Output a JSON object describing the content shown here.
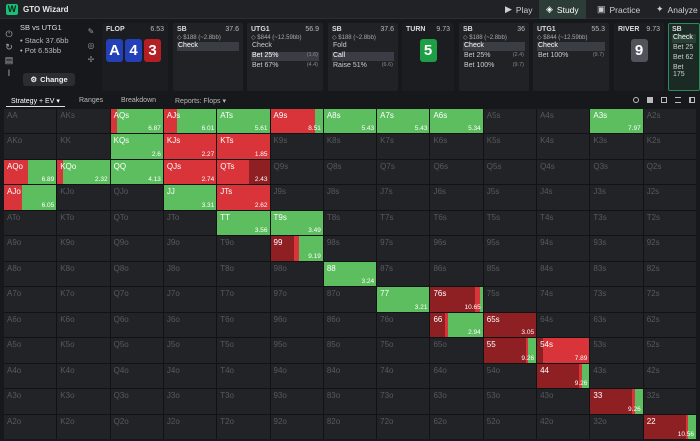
{
  "app": {
    "title": "GTO Wizard"
  },
  "colors": {
    "green": "#5cbe5e",
    "red": "#d9343a",
    "darkred": "#8e1f23",
    "brand": "#16c079"
  },
  "nav": [
    {
      "label": "Play",
      "icon": "play-icon"
    },
    {
      "label": "Study",
      "icon": "study-icon"
    },
    {
      "label": "Practice",
      "icon": "gamepad-icon"
    },
    {
      "label": "Analyze",
      "icon": "bulb-icon"
    }
  ],
  "situation": {
    "title": "SB vs UTG1",
    "stack": "Stack 37.6bb",
    "pot": "Pot 6.53bb",
    "change": "Change"
  },
  "panels": {
    "flop": {
      "street": "FLOP",
      "value": "6.53",
      "cards": [
        "A",
        "4",
        "3"
      ]
    },
    "sb1": {
      "pos": "SB",
      "value": "37.6",
      "sub": "◇ $188 (~2.8bb)",
      "actions": [
        {
          "label": "Check",
          "r": ""
        }
      ]
    },
    "utg1a": {
      "pos": "UTG1",
      "value": "56.9",
      "sub": "◇ $844 (~12.59bb)",
      "actions": [
        {
          "label": "Check",
          "r": ""
        },
        {
          "label": "Bet 25%",
          "r": "(1.6)"
        },
        {
          "label": "Bet 67%",
          "r": "(4.4)"
        }
      ]
    },
    "sb2": {
      "pos": "SB",
      "value": "37.6",
      "sub": "◇ $188 (~2.8bb)",
      "actions": [
        {
          "label": "Fold",
          "r": ""
        },
        {
          "label": "Call",
          "r": ""
        },
        {
          "label": "Raise 51%",
          "r": "(6.6)"
        }
      ]
    },
    "turn": {
      "street": "TURN",
      "value": "9.73",
      "card": "5"
    },
    "sb3": {
      "pos": "SB",
      "value": "36",
      "sub": "◇ $188 (~2.8bb)",
      "actions": [
        {
          "label": "Check",
          "r": ""
        },
        {
          "label": "Bet 25%",
          "r": "(2.4)"
        },
        {
          "label": "Bet 100%",
          "r": "(9.7)"
        }
      ]
    },
    "utg1b": {
      "pos": "UTG1",
      "value": "55.3",
      "sub": "◇ $844 (~12.59bb)",
      "actions": [
        {
          "label": "Check",
          "r": ""
        },
        {
          "label": "Bet 100%",
          "r": "(9.7)"
        }
      ]
    },
    "river": {
      "street": "RIVER",
      "value": "9.73",
      "card": "9"
    },
    "sb4": {
      "pos": "SB",
      "actions": [
        {
          "label": "Check"
        },
        {
          "label": "Bet 25"
        },
        {
          "label": "Bet 62"
        },
        {
          "label": "Bet 175"
        }
      ]
    }
  },
  "toolbar": {
    "strategy": "Strategy + EV",
    "ranges": "Ranges",
    "breakdown": "Breakdown",
    "reports": "Reports: Flops"
  },
  "grid": {
    "hands": [
      [
        "AA",
        "AKs",
        "AQs",
        "AJs",
        "ATs",
        "A9s",
        "A8s",
        "A7s",
        "A6s",
        "A5s",
        "A4s",
        "A3s",
        "A2s"
      ],
      [
        "AKo",
        "KK",
        "KQs",
        "KJs",
        "KTs",
        "K9s",
        "K8s",
        "K7s",
        "K6s",
        "K5s",
        "K4s",
        "K3s",
        "K2s"
      ],
      [
        "AQo",
        "KQo",
        "QQ",
        "QJs",
        "QTs",
        "Q9s",
        "Q8s",
        "Q7s",
        "Q6s",
        "Q5s",
        "Q4s",
        "Q3s",
        "Q2s"
      ],
      [
        "AJo",
        "KJo",
        "QJo",
        "JJ",
        "JTs",
        "J9s",
        "J8s",
        "J7s",
        "J6s",
        "J5s",
        "J4s",
        "J3s",
        "J2s"
      ],
      [
        "ATo",
        "KTo",
        "QTo",
        "JTo",
        "TT",
        "T9s",
        "T8s",
        "T7s",
        "T6s",
        "T5s",
        "T4s",
        "T3s",
        "T2s"
      ],
      [
        "A9o",
        "K9o",
        "Q9o",
        "J9o",
        "T9o",
        "99",
        "98s",
        "97s",
        "96s",
        "95s",
        "94s",
        "93s",
        "92s"
      ],
      [
        "A8o",
        "K8o",
        "Q8o",
        "J8o",
        "T8o",
        "98o",
        "88",
        "87s",
        "86s",
        "85s",
        "84s",
        "83s",
        "82s"
      ],
      [
        "A7o",
        "K7o",
        "Q7o",
        "J7o",
        "T7o",
        "97o",
        "87o",
        "77",
        "76s",
        "75s",
        "74s",
        "73s",
        "72s"
      ],
      [
        "A6o",
        "K6o",
        "Q6o",
        "J6o",
        "T6o",
        "96o",
        "86o",
        "76o",
        "66",
        "65s",
        "64s",
        "63s",
        "62s"
      ],
      [
        "A5o",
        "K5o",
        "Q5o",
        "J5o",
        "T5o",
        "95o",
        "85o",
        "75o",
        "65o",
        "55",
        "54s",
        "53s",
        "52s"
      ],
      [
        "A4o",
        "K4o",
        "Q4o",
        "J4o",
        "T4o",
        "94o",
        "84o",
        "74o",
        "64o",
        "54o",
        "44",
        "43s",
        "42s"
      ],
      [
        "A3o",
        "K3o",
        "Q3o",
        "J3o",
        "T3o",
        "93o",
        "83o",
        "73o",
        "63o",
        "53o",
        "43o",
        "33",
        "32s"
      ],
      [
        "A2o",
        "K2o",
        "Q2o",
        "J2o",
        "T2o",
        "92o",
        "82o",
        "72o",
        "62o",
        "52o",
        "42o",
        "32o",
        "22"
      ]
    ],
    "strategies": {
      "AQs": {
        "ev": "6.87",
        "s": [
          [
            "red",
            0.12
          ],
          [
            "green",
            0.88
          ]
        ]
      },
      "AJs": {
        "ev": "6.01",
        "s": [
          [
            "red",
            0.25
          ],
          [
            "green",
            0.75
          ]
        ]
      },
      "ATs": {
        "ev": "5.61",
        "s": [
          [
            "green",
            1
          ]
        ]
      },
      "A9s": {
        "ev": "8.51",
        "s": [
          [
            "red",
            0.85
          ],
          [
            "green",
            0.15
          ]
        ]
      },
      "A8s": {
        "ev": "5.43",
        "s": [
          [
            "green",
            1
          ]
        ]
      },
      "A7s": {
        "ev": "5.43",
        "s": [
          [
            "green",
            1
          ]
        ]
      },
      "A6s": {
        "ev": "5.34",
        "s": [
          [
            "green",
            1
          ]
        ]
      },
      "A3s": {
        "ev": "7.97",
        "s": [
          [
            "green",
            1
          ]
        ]
      },
      "KQs": {
        "ev": "2.6",
        "s": [
          [
            "green",
            1
          ]
        ]
      },
      "KJs": {
        "ev": "2.27",
        "s": [
          [
            "red",
            1
          ]
        ]
      },
      "KTs": {
        "ev": "1.85",
        "s": [
          [
            "red",
            1
          ]
        ]
      },
      "AQo": {
        "ev": "6.89",
        "s": [
          [
            "red",
            0.45
          ],
          [
            "green",
            0.55
          ]
        ]
      },
      "KQo": {
        "ev": "2.32",
        "s": [
          [
            "red",
            0.1
          ],
          [
            "green",
            0.9
          ]
        ]
      },
      "QQ": {
        "ev": "4.13",
        "s": [
          [
            "green",
            1
          ]
        ]
      },
      "QJs": {
        "ev": "2.74",
        "s": [
          [
            "red",
            1
          ]
        ]
      },
      "QTs": {
        "ev": "2.43",
        "s": [
          [
            "red",
            0.6
          ],
          [
            "darkred",
            0.4
          ]
        ]
      },
      "AJo": {
        "ev": "6.05",
        "s": [
          [
            "red",
            0.35
          ],
          [
            "green",
            0.65
          ]
        ]
      },
      "JJ": {
        "ev": "3.31",
        "s": [
          [
            "green",
            1
          ]
        ]
      },
      "JTs": {
        "ev": "2.62",
        "s": [
          [
            "red",
            1
          ]
        ]
      },
      "TT": {
        "ev": "3.56",
        "s": [
          [
            "green",
            1
          ]
        ]
      },
      "T9s": {
        "ev": "3.49",
        "s": [
          [
            "green",
            1
          ]
        ]
      },
      "99": {
        "ev": "9.19",
        "s": [
          [
            "darkred",
            0.45
          ],
          [
            "red",
            0.1
          ],
          [
            "green",
            0.45
          ]
        ]
      },
      "88": {
        "ev": "3.24",
        "s": [
          [
            "green",
            1
          ]
        ]
      },
      "77": {
        "ev": "3.21",
        "s": [
          [
            "green",
            1
          ]
        ]
      },
      "76s": {
        "ev": "10.65",
        "s": [
          [
            "darkred",
            0.85
          ],
          [
            "red",
            0.1
          ],
          [
            "green",
            0.05
          ]
        ]
      },
      "66": {
        "ev": "2.94",
        "s": [
          [
            "darkred",
            0.28
          ],
          [
            "red",
            0.05
          ],
          [
            "green",
            0.67
          ]
        ]
      },
      "65s": {
        "ev": "3.05",
        "s": [
          [
            "darkred",
            1
          ]
        ]
      },
      "55": {
        "ev": "9.26",
        "s": [
          [
            "darkred",
            0.8
          ],
          [
            "red",
            0.05
          ],
          [
            "green",
            0.15
          ]
        ]
      },
      "54s": {
        "ev": "7.89",
        "s": [
          [
            "darkred",
            0.12
          ],
          [
            "red",
            0.88
          ]
        ]
      },
      "44": {
        "ev": "9.26",
        "s": [
          [
            "darkred",
            0.8
          ],
          [
            "red",
            0.05
          ],
          [
            "green",
            0.15
          ]
        ]
      },
      "33": {
        "ev": "9.26",
        "s": [
          [
            "darkred",
            0.8
          ],
          [
            "red",
            0.05
          ],
          [
            "green",
            0.15
          ]
        ]
      },
      "22": {
        "ev": "10.56",
        "s": [
          [
            "darkred",
            0.8
          ],
          [
            "red",
            0.05
          ],
          [
            "green",
            0.15
          ]
        ]
      }
    }
  }
}
